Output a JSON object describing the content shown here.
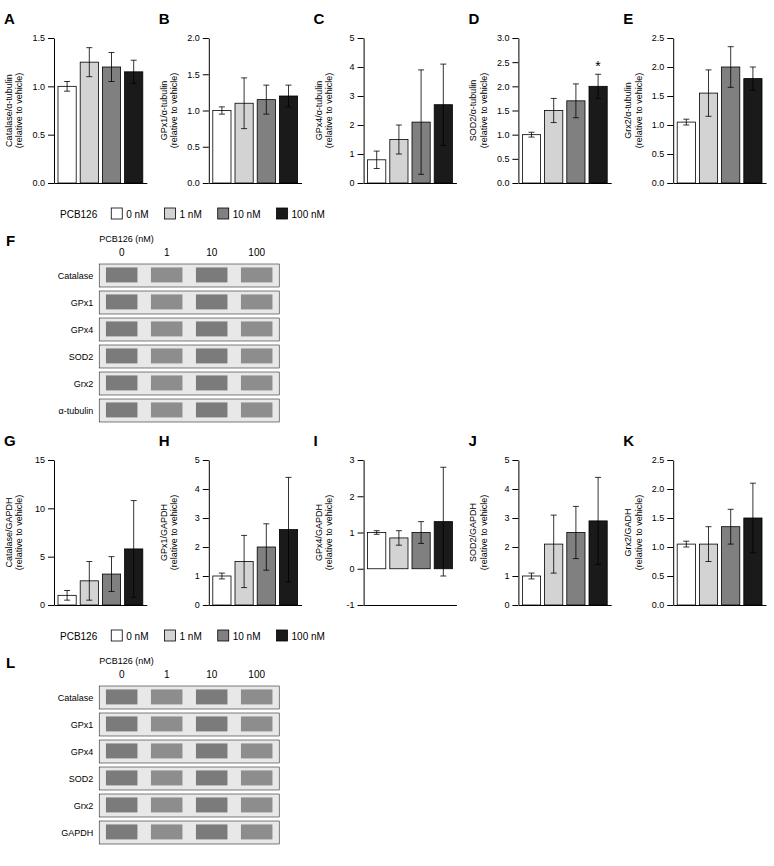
{
  "chart_data": [
    {
      "type": "bar",
      "title": "A",
      "ylabel": "Catalase/α-tubulin\n(relative to vehicle)",
      "categories": [
        "0 nM",
        "1 nM",
        "10 nM",
        "100 nM"
      ],
      "colors": [
        "white",
        "#d3d3d3",
        "#808080",
        "#1a1a1a"
      ],
      "values": [
        1.0,
        1.25,
        1.2,
        1.15
      ],
      "errors": [
        0.05,
        0.15,
        0.15,
        0.12
      ],
      "ylim": [
        0,
        1.5
      ],
      "yticks": [
        {
          "value": 0,
          "label": "0.0"
        },
        0.5,
        {
          "value": 1.0,
          "label": "1.0"
        },
        1.5
      ],
      "tick_labels": "y"
    },
    {
      "type": "bar",
      "title": "B",
      "ylabel": "GPx1/α-tubulin\n(relative to vehicle)",
      "categories": [
        "0 nM",
        "1 nM",
        "10 nM",
        "100 nM"
      ],
      "colors": [
        "white",
        "#d3d3d3",
        "#808080",
        "#1a1a1a"
      ],
      "values": [
        1.0,
        1.1,
        1.15,
        1.2
      ],
      "errors": [
        0.05,
        0.35,
        0.2,
        0.15
      ],
      "ylim": [
        0,
        2.0
      ],
      "yticks": [
        {
          "value": 0,
          "label": "0.0"
        },
        0.5,
        {
          "value": 1.0,
          "label": "1.0"
        },
        1.5,
        {
          "value": 2.0,
          "label": "2.0"
        }
      ],
      "tick_labels": "y"
    },
    {
      "type": "bar",
      "title": "C",
      "ylabel": "GPx4/α-tubulin\n(relative to vehicle)",
      "categories": [
        "0 nM",
        "1 nM",
        "10 nM",
        "100 nM"
      ],
      "colors": [
        "white",
        "#d3d3d3",
        "#808080",
        "#1a1a1a"
      ],
      "values": [
        0.8,
        1.5,
        2.1,
        2.7
      ],
      "errors": [
        0.3,
        0.5,
        1.8,
        1.4
      ],
      "ylim": [
        0,
        5
      ],
      "yticks": [
        0,
        1,
        2,
        3,
        4,
        5
      ],
      "tick_labels": "y"
    },
    {
      "type": "bar",
      "title": "D",
      "ylabel": "SOD2/α-tubulin\n(relative to vehicle)",
      "categories": [
        "0 nM",
        "1 nM",
        "10 nM",
        "100 nM"
      ],
      "colors": [
        "white",
        "#d3d3d3",
        "#808080",
        "#1a1a1a"
      ],
      "values": [
        1.0,
        1.5,
        1.7,
        2.0
      ],
      "errors": [
        0.05,
        0.25,
        0.35,
        0.25
      ],
      "ylim": [
        0,
        3.0
      ],
      "yticks": [
        {
          "value": 0,
          "label": "0.0"
        },
        0.5,
        {
          "value": 1.0,
          "label": "1.0"
        },
        1.5,
        {
          "value": 2.0,
          "label": "2.0"
        },
        2.5,
        {
          "value": 3.0,
          "label": "3.0"
        }
      ],
      "annotations": [
        {
          "text": "*",
          "x": "100 nM"
        }
      ],
      "tick_labels": "y"
    },
    {
      "type": "bar",
      "title": "E",
      "ylabel": "Grx2/α-tubulin\n(relative to vehicle)",
      "categories": [
        "0 nM",
        "1 nM",
        "10 nM",
        "100 nM"
      ],
      "colors": [
        "white",
        "#d3d3d3",
        "#808080",
        "#1a1a1a"
      ],
      "values": [
        1.05,
        1.55,
        2.0,
        1.8
      ],
      "errors": [
        0.05,
        0.4,
        0.35,
        0.2
      ],
      "ylim": [
        0,
        2.5
      ],
      "yticks": [
        {
          "value": 0,
          "label": "0.0"
        },
        0.5,
        {
          "value": 1.0,
          "label": "1.0"
        },
        1.5,
        {
          "value": 2.0,
          "label": "2.0"
        },
        2.5
      ],
      "tick_labels": "y"
    },
    {
      "type": "legend",
      "title": "PCB126",
      "categories": [
        "0 nM",
        "1 nM",
        "10 nM",
        "100 nM"
      ],
      "colors": [
        "white",
        "#d3d3d3",
        "#808080",
        "#1a1a1a"
      ]
    },
    {
      "type": "blot",
      "title": "F",
      "xlabel": "PCB126 (nM)",
      "categories": [
        "0",
        "1",
        "10",
        "100"
      ],
      "rows": [
        "Catalase",
        "GPx1",
        "GPx4",
        "SOD2",
        "Grx2",
        "α-tubulin"
      ]
    },
    {
      "type": "bar",
      "title": "G",
      "ylabel": "Catalase/GAPDH\n(relative to vehicle)",
      "categories": [
        "0 nM",
        "1 nM",
        "10 nM",
        "100 nM"
      ],
      "colors": [
        "white",
        "#d3d3d3",
        "#808080",
        "#1a1a1a"
      ],
      "values": [
        1.0,
        2.5,
        3.2,
        5.8
      ],
      "errors": [
        0.5,
        2.0,
        1.8,
        5.0
      ],
      "ylim": [
        0,
        15
      ],
      "yticks": [
        0,
        5,
        10,
        15
      ],
      "tick_labels": "y"
    },
    {
      "type": "bar",
      "title": "H",
      "ylabel": "GPx1/GAPDH\n(relative to vehicle)",
      "categories": [
        "0 nM",
        "1 nM",
        "10 nM",
        "100 nM"
      ],
      "colors": [
        "white",
        "#d3d3d3",
        "#808080",
        "#1a1a1a"
      ],
      "values": [
        1.0,
        1.5,
        2.0,
        2.6
      ],
      "errors": [
        0.1,
        0.9,
        0.8,
        1.8
      ],
      "ylim": [
        0,
        5
      ],
      "yticks": [
        0,
        1,
        2,
        3,
        4,
        5
      ],
      "tick_labels": "y"
    },
    {
      "type": "bar",
      "title": "I",
      "ylabel": "GPx4/GAPDH\n(relative to vehicle)",
      "categories": [
        "0 nM",
        "1 nM",
        "10 nM",
        "100 nM"
      ],
      "colors": [
        "white",
        "#d3d3d3",
        "#808080",
        "#1a1a1a"
      ],
      "values": [
        1.0,
        0.85,
        1.0,
        1.3
      ],
      "errors": [
        0.05,
        0.2,
        0.3,
        1.5
      ],
      "ylim": [
        -1,
        3
      ],
      "yticks": [
        -1,
        0,
        1,
        2,
        3
      ],
      "tick_labels": "y"
    },
    {
      "type": "bar",
      "title": "J",
      "ylabel": "SOD2/GAPDH\n(relative to vehicle)",
      "categories": [
        "0 nM",
        "1 nM",
        "10 nM",
        "100 nM"
      ],
      "colors": [
        "white",
        "#d3d3d3",
        "#808080",
        "#1a1a1a"
      ],
      "values": [
        1.0,
        2.1,
        2.5,
        2.9
      ],
      "errors": [
        0.1,
        1.0,
        0.9,
        1.5
      ],
      "ylim": [
        0,
        5
      ],
      "yticks": [
        0,
        1,
        2,
        3,
        4,
        5
      ],
      "tick_labels": "y"
    },
    {
      "type": "bar",
      "title": "K",
      "ylabel": "Grx2/GADH\n(relative to vehicle)",
      "categories": [
        "0 nM",
        "1 nM",
        "10 nM",
        "100 nM"
      ],
      "colors": [
        "white",
        "#d3d3d3",
        "#808080",
        "#1a1a1a"
      ],
      "values": [
        1.05,
        1.05,
        1.35,
        1.5
      ],
      "errors": [
        0.05,
        0.3,
        0.3,
        0.6
      ],
      "ylim": [
        0,
        2.5
      ],
      "yticks": [
        {
          "value": 0,
          "label": "0.0"
        },
        0.5,
        {
          "value": 1.0,
          "label": "1.0"
        },
        1.5,
        {
          "value": 2.0,
          "label": "2.0"
        },
        2.5
      ],
      "tick_labels": "y"
    },
    {
      "type": "legend",
      "title": "PCB126",
      "categories": [
        "0 nM",
        "1 nM",
        "10 nM",
        "100 nM"
      ],
      "colors": [
        "white",
        "#d3d3d3",
        "#808080",
        "#1a1a1a"
      ]
    },
    {
      "type": "blot",
      "title": "L",
      "xlabel": "PCB126 (nM)",
      "categories": [
        "0",
        "1",
        "10",
        "100"
      ],
      "rows": [
        "Catalase",
        "GPx1",
        "GPx4",
        "SOD2",
        "Grx2",
        "GAPDH"
      ]
    }
  ]
}
